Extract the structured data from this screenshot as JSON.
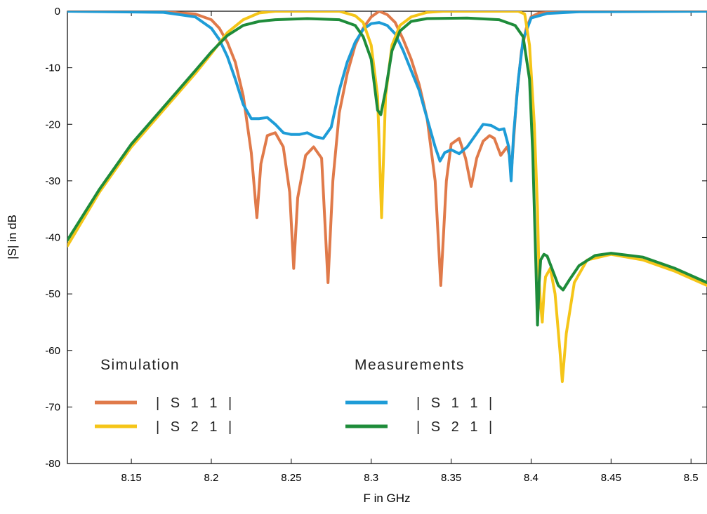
{
  "chart_data": {
    "type": "line",
    "title": "",
    "xlabel": "F  in GHz",
    "ylabel": "|S| in dB",
    "xlim": [
      8.11,
      8.51
    ],
    "ylim": [
      -80,
      0
    ],
    "xticks": [
      8.15,
      8.2,
      8.25,
      8.3,
      8.35,
      8.4,
      8.45,
      8.5
    ],
    "yticks": [
      0,
      -10,
      -20,
      -30,
      -40,
      -50,
      -60,
      -70,
      -80
    ],
    "grid": false,
    "legend": {
      "placement": "bottom-left",
      "groups": [
        {
          "heading": "Simulation",
          "entries": [
            "| S 1 1 |",
            "| S 2 1 |"
          ]
        },
        {
          "heading": "Measurements",
          "entries": [
            "| S 1 1 |",
            "| S 2 1 |"
          ]
        }
      ]
    },
    "colors": {
      "sim_s11": "#E07A4A",
      "sim_s21": "#F5C518",
      "meas_s11": "#1E9CD7",
      "meas_s21": "#1E8C3A"
    },
    "series": [
      {
        "name": "Simulation | S 1 1 |",
        "group": "Simulation",
        "color": "#E07A4A",
        "points": [
          [
            8.11,
            0
          ],
          [
            8.17,
            -0.1
          ],
          [
            8.19,
            -0.5
          ],
          [
            8.2,
            -1.5
          ],
          [
            8.205,
            -3
          ],
          [
            8.21,
            -5.5
          ],
          [
            8.215,
            -9
          ],
          [
            8.22,
            -15
          ],
          [
            8.225,
            -25
          ],
          [
            8.2285,
            -36.5
          ],
          [
            8.231,
            -27
          ],
          [
            8.235,
            -22
          ],
          [
            8.24,
            -21.5
          ],
          [
            8.245,
            -24
          ],
          [
            8.249,
            -32
          ],
          [
            8.2515,
            -45.5
          ],
          [
            8.254,
            -33
          ],
          [
            8.259,
            -25.5
          ],
          [
            8.264,
            -24
          ],
          [
            8.269,
            -26
          ],
          [
            8.273,
            -48
          ],
          [
            8.276,
            -30
          ],
          [
            8.28,
            -18
          ],
          [
            8.285,
            -11
          ],
          [
            8.29,
            -6
          ],
          [
            8.295,
            -3
          ],
          [
            8.3,
            -1
          ],
          [
            8.305,
            0
          ],
          [
            8.31,
            -0.6
          ],
          [
            8.315,
            -2
          ],
          [
            8.32,
            -5
          ],
          [
            8.325,
            -8.5
          ],
          [
            8.33,
            -13
          ],
          [
            8.335,
            -19
          ],
          [
            8.34,
            -30
          ],
          [
            8.3435,
            -48.5
          ],
          [
            8.347,
            -30
          ],
          [
            8.35,
            -23.5
          ],
          [
            8.355,
            -22.5
          ],
          [
            8.359,
            -26
          ],
          [
            8.3625,
            -31
          ],
          [
            8.366,
            -26
          ],
          [
            8.37,
            -23
          ],
          [
            8.374,
            -22
          ],
          [
            8.377,
            -22.5
          ],
          [
            8.381,
            -25.5
          ],
          [
            8.385,
            -24
          ],
          [
            8.388,
            -27
          ],
          [
            8.391,
            -15
          ],
          [
            8.394,
            -7
          ],
          [
            8.397,
            -3
          ],
          [
            8.4,
            -1
          ],
          [
            8.405,
            -0.3
          ],
          [
            8.43,
            0
          ],
          [
            8.51,
            0
          ]
        ]
      },
      {
        "name": "Simulation | S 2 1 |",
        "group": "Simulation",
        "color": "#F5C518",
        "points": [
          [
            8.11,
            -41.5
          ],
          [
            8.13,
            -32
          ],
          [
            8.15,
            -24
          ],
          [
            8.17,
            -17.5
          ],
          [
            8.19,
            -11
          ],
          [
            8.2,
            -7.5
          ],
          [
            8.21,
            -3.8
          ],
          [
            8.22,
            -1.5
          ],
          [
            8.23,
            -0.3
          ],
          [
            8.24,
            0
          ],
          [
            8.28,
            0
          ],
          [
            8.29,
            -0.8
          ],
          [
            8.295,
            -2
          ],
          [
            8.3,
            -6
          ],
          [
            8.304,
            -15
          ],
          [
            8.3065,
            -36.5
          ],
          [
            8.309,
            -15
          ],
          [
            8.313,
            -6
          ],
          [
            8.318,
            -2.5
          ],
          [
            8.325,
            -1
          ],
          [
            8.335,
            -0.2
          ],
          [
            8.345,
            0
          ],
          [
            8.392,
            0
          ],
          [
            8.396,
            -0.5
          ],
          [
            8.399,
            -6
          ],
          [
            8.402,
            -20
          ],
          [
            8.404,
            -35
          ],
          [
            8.405,
            -48
          ],
          [
            8.406,
            -52
          ],
          [
            8.407,
            -55
          ],
          [
            8.408,
            -50
          ],
          [
            8.409,
            -47
          ],
          [
            8.412,
            -45.5
          ],
          [
            8.415,
            -50
          ],
          [
            8.418,
            -60
          ],
          [
            8.4195,
            -65.5
          ],
          [
            8.422,
            -57
          ],
          [
            8.427,
            -48
          ],
          [
            8.435,
            -44
          ],
          [
            8.45,
            -43
          ],
          [
            8.47,
            -44
          ],
          [
            8.49,
            -46
          ],
          [
            8.51,
            -48.5
          ]
        ]
      },
      {
        "name": "Measurements | S 1 1 |",
        "group": "Measurements",
        "color": "#1E9CD7",
        "points": [
          [
            8.11,
            0
          ],
          [
            8.17,
            -0.2
          ],
          [
            8.19,
            -1
          ],
          [
            8.2,
            -3
          ],
          [
            8.205,
            -5
          ],
          [
            8.21,
            -8
          ],
          [
            8.215,
            -12
          ],
          [
            8.22,
            -16.5
          ],
          [
            8.225,
            -19
          ],
          [
            8.23,
            -19
          ],
          [
            8.235,
            -18.8
          ],
          [
            8.24,
            -20
          ],
          [
            8.245,
            -21.5
          ],
          [
            8.25,
            -21.8
          ],
          [
            8.255,
            -21.8
          ],
          [
            8.26,
            -21.5
          ],
          [
            8.265,
            -22.2
          ],
          [
            8.27,
            -22.5
          ],
          [
            8.275,
            -20.5
          ],
          [
            8.28,
            -14
          ],
          [
            8.285,
            -9
          ],
          [
            8.29,
            -5.5
          ],
          [
            8.295,
            -3.2
          ],
          [
            8.3,
            -2.2
          ],
          [
            8.305,
            -2
          ],
          [
            8.31,
            -2.5
          ],
          [
            8.315,
            -4
          ],
          [
            8.32,
            -7
          ],
          [
            8.325,
            -10.5
          ],
          [
            8.33,
            -14
          ],
          [
            8.335,
            -19
          ],
          [
            8.34,
            -24
          ],
          [
            8.343,
            -26.5
          ],
          [
            8.346,
            -25
          ],
          [
            8.35,
            -24.5
          ],
          [
            8.355,
            -25.2
          ],
          [
            8.36,
            -24
          ],
          [
            8.365,
            -22
          ],
          [
            8.37,
            -20
          ],
          [
            8.375,
            -20.2
          ],
          [
            8.38,
            -21
          ],
          [
            8.383,
            -20.8
          ],
          [
            8.386,
            -24
          ],
          [
            8.3875,
            -30
          ],
          [
            8.389,
            -22
          ],
          [
            8.392,
            -12
          ],
          [
            8.395,
            -5
          ],
          [
            8.4,
            -1.2
          ],
          [
            8.41,
            -0.4
          ],
          [
            8.43,
            -0.1
          ],
          [
            8.51,
            0
          ]
        ]
      },
      {
        "name": "Measurements | S 2 1 |",
        "group": "Measurements",
        "color": "#1E8C3A",
        "points": [
          [
            8.11,
            -40.5
          ],
          [
            8.13,
            -31.5
          ],
          [
            8.15,
            -23.5
          ],
          [
            8.17,
            -17
          ],
          [
            8.19,
            -10.5
          ],
          [
            8.2,
            -7.2
          ],
          [
            8.21,
            -4.3
          ],
          [
            8.22,
            -2.5
          ],
          [
            8.23,
            -1.8
          ],
          [
            8.24,
            -1.5
          ],
          [
            8.26,
            -1.3
          ],
          [
            8.28,
            -1.5
          ],
          [
            8.29,
            -2.5
          ],
          [
            8.295,
            -4.5
          ],
          [
            8.3,
            -8.5
          ],
          [
            8.304,
            -17.5
          ],
          [
            8.306,
            -18.3
          ],
          [
            8.309,
            -14
          ],
          [
            8.313,
            -7
          ],
          [
            8.318,
            -3.5
          ],
          [
            8.325,
            -1.8
          ],
          [
            8.335,
            -1.3
          ],
          [
            8.36,
            -1.2
          ],
          [
            8.38,
            -1.5
          ],
          [
            8.39,
            -2.5
          ],
          [
            8.395,
            -4.5
          ],
          [
            8.399,
            -12
          ],
          [
            8.401,
            -25
          ],
          [
            8.403,
            -45
          ],
          [
            8.404,
            -55.5
          ],
          [
            8.405,
            -48
          ],
          [
            8.406,
            -44
          ],
          [
            8.408,
            -43
          ],
          [
            8.41,
            -43.3
          ],
          [
            8.413,
            -45.5
          ],
          [
            8.417,
            -48.5
          ],
          [
            8.42,
            -49.3
          ],
          [
            8.424,
            -47.5
          ],
          [
            8.43,
            -45
          ],
          [
            8.44,
            -43.2
          ],
          [
            8.45,
            -42.8
          ],
          [
            8.47,
            -43.5
          ],
          [
            8.49,
            -45.5
          ],
          [
            8.51,
            -48
          ]
        ]
      }
    ]
  }
}
